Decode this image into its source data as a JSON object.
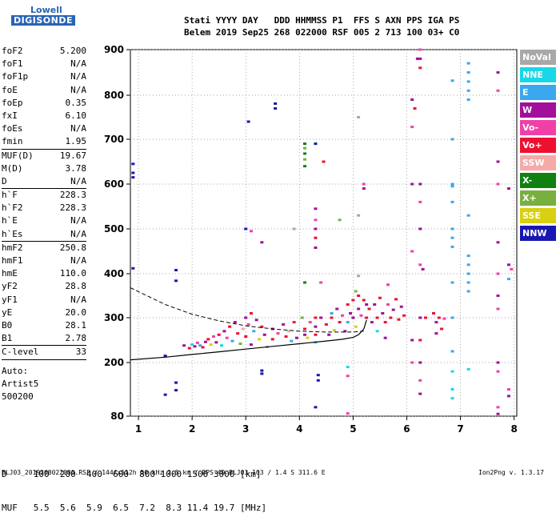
{
  "logo": {
    "brand": "Lowell",
    "product": "DIGISONDE"
  },
  "header": {
    "line1": "Stati YYYY DAY   DDD HHMMSS P1  FFS S AXN PPS IGA PS",
    "line2": "Belem 2019 Sep25 268 022000 RSF 005 2 713 100 03+ C0"
  },
  "params": {
    "group1": [
      {
        "label": "foF2",
        "value": "5.200"
      },
      {
        "label": "foF1",
        "value": "N/A"
      },
      {
        "label": "foF1p",
        "value": "N/A"
      },
      {
        "label": "foE",
        "value": "N/A"
      },
      {
        "label": "foEp",
        "value": "0.35"
      },
      {
        "label": "fxI",
        "value": "6.10"
      },
      {
        "label": "foEs",
        "value": "N/A"
      },
      {
        "label": "fmin",
        "value": "1.95"
      }
    ],
    "group2": [
      {
        "label": "MUF(D)",
        "value": "19.67"
      },
      {
        "label": "M(D)",
        "value": "3.78"
      },
      {
        "label": "D",
        "value": "N/A"
      }
    ],
    "group3": [
      {
        "label": "h`F",
        "value": "228.3"
      },
      {
        "label": "h`F2",
        "value": "228.3"
      },
      {
        "label": "h`E",
        "value": "N/A"
      },
      {
        "label": "h`Es",
        "value": "N/A"
      }
    ],
    "group4": [
      {
        "label": "hmF2",
        "value": "250.8"
      },
      {
        "label": "hmF1",
        "value": "N/A"
      },
      {
        "label": "hmE",
        "value": "110.0"
      },
      {
        "label": "yF2",
        "value": "28.8"
      },
      {
        "label": "yF1",
        "value": "N/A"
      },
      {
        "label": "yE",
        "value": "20.0"
      },
      {
        "label": "B0",
        "value": "28.1"
      },
      {
        "label": "B1",
        "value": "2.78"
      }
    ],
    "group5": [
      {
        "label": "C-level",
        "value": "33"
      }
    ],
    "auto": [
      "Auto:",
      "Artist5",
      "500200"
    ]
  },
  "legend": [
    {
      "label": "NoVal",
      "color": "#a8a8a8"
    },
    {
      "label": "NNE",
      "color": "#18d8e8"
    },
    {
      "label": "E",
      "color": "#3aa8ee"
    },
    {
      "label": "W",
      "color": "#a0109a"
    },
    {
      "label": "Vo-",
      "color": "#f040a8"
    },
    {
      "label": "Vo+",
      "color": "#ee1030"
    },
    {
      "label": "SSW",
      "color": "#f4aaa8"
    },
    {
      "label": "X-",
      "color": "#108010"
    },
    {
      "label": "X+",
      "color": "#78b040"
    },
    {
      "label": "SSE",
      "color": "#d8d010"
    },
    {
      "label": "NNW",
      "color": "#1818b0"
    }
  ],
  "dtable": {
    "line1": "D     100  200  400  600  800 1000 1500 3000 [km]",
    "line2": "MUF   5.5  5.6  5.9  6.5  7.2  8.3 11.4 19.7 [MHz]"
  },
  "footer": {
    "text": "BLJ03_2019268022000.RSF / 144fx512h 50 kHz 2.5 km / DPS-4D BLJ03 103 / 1.4 S 311.6 E",
    "version": "Ion2Png v. 1.3.17"
  },
  "chart_data": {
    "type": "scatter",
    "xlim": [
      0.85,
      8.05
    ],
    "ylim": [
      80,
      900
    ],
    "x_ticks": [
      1,
      2,
      3,
      4,
      5,
      6,
      7,
      8
    ],
    "y_ticks": [
      80,
      200,
      300,
      400,
      500,
      600,
      700,
      800,
      900
    ],
    "grid": true,
    "legend_position": "right",
    "solid_profile": {
      "x": [
        0.85,
        1.5,
        2.0,
        2.5,
        3.0,
        3.5,
        4.0,
        4.5,
        4.8,
        5.0,
        5.1,
        5.2,
        5.25
      ],
      "y": [
        206,
        212,
        218,
        224,
        230,
        236,
        242,
        248,
        252,
        256,
        262,
        275,
        295
      ]
    },
    "dashed_profile": {
      "x": [
        0.85,
        1.5,
        2.0,
        2.5,
        3.0,
        3.5,
        4.0,
        4.5,
        5.0,
        5.2
      ],
      "y": [
        368,
        330,
        308,
        293,
        282,
        275,
        270,
        268,
        268,
        270
      ]
    },
    "points": [
      {
        "x": 0.9,
        "y": 645,
        "c": "NNW"
      },
      {
        "x": 0.9,
        "y": 625,
        "c": "NNW"
      },
      {
        "x": 0.9,
        "y": 615,
        "c": "NNW"
      },
      {
        "x": 0.9,
        "y": 412,
        "c": "NNW"
      },
      {
        "x": 1.5,
        "y": 215,
        "c": "NNW"
      },
      {
        "x": 1.5,
        "y": 128,
        "c": "NNW"
      },
      {
        "x": 1.7,
        "y": 408,
        "c": "NNW"
      },
      {
        "x": 1.7,
        "y": 384,
        "c": "NNW"
      },
      {
        "x": 1.7,
        "y": 155,
        "c": "NNW"
      },
      {
        "x": 1.7,
        "y": 138,
        "c": "NNW"
      },
      {
        "x": 1.85,
        "y": 238,
        "c": "W"
      },
      {
        "x": 1.95,
        "y": 232,
        "c": "Vo+"
      },
      {
        "x": 2.0,
        "y": 240,
        "c": "NNE"
      },
      {
        "x": 2.05,
        "y": 236,
        "c": "W"
      },
      {
        "x": 2.1,
        "y": 244,
        "c": "Vo-"
      },
      {
        "x": 2.15,
        "y": 238,
        "c": "E"
      },
      {
        "x": 2.2,
        "y": 234,
        "c": "Vo+"
      },
      {
        "x": 2.25,
        "y": 246,
        "c": "W"
      },
      {
        "x": 2.3,
        "y": 252,
        "c": "Vo+"
      },
      {
        "x": 2.35,
        "y": 240,
        "c": "SSE"
      },
      {
        "x": 2.4,
        "y": 258,
        "c": "Vo-"
      },
      {
        "x": 2.45,
        "y": 245,
        "c": "W"
      },
      {
        "x": 2.5,
        "y": 262,
        "c": "Vo+"
      },
      {
        "x": 2.55,
        "y": 238,
        "c": "NNE"
      },
      {
        "x": 2.6,
        "y": 270,
        "c": "W"
      },
      {
        "x": 2.65,
        "y": 255,
        "c": "Vo-"
      },
      {
        "x": 2.7,
        "y": 280,
        "c": "Vo+"
      },
      {
        "x": 2.75,
        "y": 248,
        "c": "E"
      },
      {
        "x": 2.8,
        "y": 290,
        "c": "W"
      },
      {
        "x": 2.85,
        "y": 265,
        "c": "Vo+"
      },
      {
        "x": 2.9,
        "y": 242,
        "c": "X+"
      },
      {
        "x": 2.95,
        "y": 275,
        "c": "SSW"
      },
      {
        "x": 3.0,
        "y": 300,
        "c": "W"
      },
      {
        "x": 3.0,
        "y": 258,
        "c": "Vo+"
      },
      {
        "x": 3.05,
        "y": 285,
        "c": "Vo-"
      },
      {
        "x": 3.1,
        "y": 310,
        "c": "Vo+"
      },
      {
        "x": 3.1,
        "y": 240,
        "c": "W"
      },
      {
        "x": 3.15,
        "y": 270,
        "c": "E"
      },
      {
        "x": 3.2,
        "y": 295,
        "c": "W"
      },
      {
        "x": 3.25,
        "y": 252,
        "c": "SSE"
      },
      {
        "x": 3.3,
        "y": 280,
        "c": "Vo+"
      },
      {
        "x": 3.35,
        "y": 262,
        "c": "W"
      },
      {
        "x": 3.05,
        "y": 740,
        "c": "NNW"
      },
      {
        "x": 3.0,
        "y": 500,
        "c": "NNW"
      },
      {
        "x": 3.1,
        "y": 495,
        "c": "Vo-"
      },
      {
        "x": 3.3,
        "y": 470,
        "c": "W"
      },
      {
        "x": 3.3,
        "y": 182,
        "c": "NNW"
      },
      {
        "x": 3.3,
        "y": 175,
        "c": "NNW"
      },
      {
        "x": 3.4,
        "y": 235,
        "c": "NoVal"
      },
      {
        "x": 3.5,
        "y": 275,
        "c": "W"
      },
      {
        "x": 3.5,
        "y": 252,
        "c": "Vo+"
      },
      {
        "x": 3.55,
        "y": 781,
        "c": "NNW"
      },
      {
        "x": 3.55,
        "y": 770,
        "c": "NNW"
      },
      {
        "x": 3.6,
        "y": 265,
        "c": "Vo-"
      },
      {
        "x": 3.7,
        "y": 285,
        "c": "W"
      },
      {
        "x": 3.75,
        "y": 258,
        "c": "Vo+"
      },
      {
        "x": 3.8,
        "y": 270,
        "c": "SSW"
      },
      {
        "x": 3.85,
        "y": 248,
        "c": "E"
      },
      {
        "x": 3.9,
        "y": 290,
        "c": "Vo+"
      },
      {
        "x": 3.95,
        "y": 255,
        "c": "W"
      },
      {
        "x": 3.9,
        "y": 500,
        "c": "NoVal"
      },
      {
        "x": 4.1,
        "y": 690,
        "c": "X-"
      },
      {
        "x": 4.1,
        "y": 680,
        "c": "X+"
      },
      {
        "x": 4.1,
        "y": 668,
        "c": "X-"
      },
      {
        "x": 4.1,
        "y": 655,
        "c": "X+"
      },
      {
        "x": 4.1,
        "y": 640,
        "c": "X-"
      },
      {
        "x": 4.1,
        "y": 380,
        "c": "X-"
      },
      {
        "x": 4.05,
        "y": 300,
        "c": "X+"
      },
      {
        "x": 4.1,
        "y": 275,
        "c": "Vo+"
      },
      {
        "x": 4.1,
        "y": 262,
        "c": "W"
      },
      {
        "x": 4.15,
        "y": 255,
        "c": "SSE"
      },
      {
        "x": 4.2,
        "y": 290,
        "c": "Vo-"
      },
      {
        "x": 4.3,
        "y": 690,
        "c": "NNW"
      },
      {
        "x": 4.3,
        "y": 545,
        "c": "W"
      },
      {
        "x": 4.3,
        "y": 520,
        "c": "Vo-"
      },
      {
        "x": 4.3,
        "y": 500,
        "c": "W"
      },
      {
        "x": 4.3,
        "y": 480,
        "c": "Vo+"
      },
      {
        "x": 4.3,
        "y": 458,
        "c": "W"
      },
      {
        "x": 4.3,
        "y": 300,
        "c": "Vo+"
      },
      {
        "x": 4.3,
        "y": 280,
        "c": "W"
      },
      {
        "x": 4.3,
        "y": 262,
        "c": "Vo+"
      },
      {
        "x": 4.3,
        "y": 245,
        "c": "NNE"
      },
      {
        "x": 4.35,
        "y": 172,
        "c": "NNW"
      },
      {
        "x": 4.35,
        "y": 160,
        "c": "NNW"
      },
      {
        "x": 4.4,
        "y": 380,
        "c": "Vo-"
      },
      {
        "x": 4.4,
        "y": 300,
        "c": "W"
      },
      {
        "x": 4.45,
        "y": 650,
        "c": "Vo+"
      },
      {
        "x": 4.5,
        "y": 285,
        "c": "Vo+"
      },
      {
        "x": 4.55,
        "y": 262,
        "c": "W"
      },
      {
        "x": 4.6,
        "y": 310,
        "c": "E"
      },
      {
        "x": 4.6,
        "y": 300,
        "c": "Vo+"
      },
      {
        "x": 4.65,
        "y": 272,
        "c": "SSE"
      },
      {
        "x": 4.7,
        "y": 320,
        "c": "W"
      },
      {
        "x": 4.75,
        "y": 290,
        "c": "Vo+"
      },
      {
        "x": 4.75,
        "y": 520,
        "c": "X+"
      },
      {
        "x": 4.8,
        "y": 305,
        "c": "Vo-"
      },
      {
        "x": 4.85,
        "y": 270,
        "c": "W"
      },
      {
        "x": 4.9,
        "y": 330,
        "c": "Vo+"
      },
      {
        "x": 4.9,
        "y": 290,
        "c": "E"
      },
      {
        "x": 4.9,
        "y": 190,
        "c": "NNE"
      },
      {
        "x": 4.95,
        "y": 310,
        "c": "W"
      },
      {
        "x": 4.9,
        "y": 170,
        "c": "Vo-"
      },
      {
        "x": 5.0,
        "y": 340,
        "c": "Vo+"
      },
      {
        "x": 5.0,
        "y": 300,
        "c": "W"
      },
      {
        "x": 5.05,
        "y": 280,
        "c": "SSE"
      },
      {
        "x": 5.05,
        "y": 360,
        "c": "X+"
      },
      {
        "x": 5.1,
        "y": 350,
        "c": "Vo+"
      },
      {
        "x": 5.1,
        "y": 320,
        "c": "W"
      },
      {
        "x": 5.1,
        "y": 395,
        "c": "NoVal"
      },
      {
        "x": 5.1,
        "y": 530,
        "c": "NoVal"
      },
      {
        "x": 5.1,
        "y": 750,
        "c": "NoVal"
      },
      {
        "x": 5.15,
        "y": 305,
        "c": "Vo-"
      },
      {
        "x": 5.2,
        "y": 340,
        "c": "Vo+"
      },
      {
        "x": 5.2,
        "y": 600,
        "c": "Vo-"
      },
      {
        "x": 5.2,
        "y": 590,
        "c": "W"
      },
      {
        "x": 5.25,
        "y": 330,
        "c": "W"
      },
      {
        "x": 5.25,
        "y": 300,
        "c": "Vo+"
      },
      {
        "x": 5.3,
        "y": 320,
        "c": "Vo+"
      },
      {
        "x": 5.35,
        "y": 290,
        "c": "W"
      },
      {
        "x": 4.3,
        "y": 100,
        "c": "NNW"
      },
      {
        "x": 4.9,
        "y": 86,
        "c": "Vo-"
      },
      {
        "x": 5.4,
        "y": 330,
        "c": "W"
      },
      {
        "x": 5.45,
        "y": 300,
        "c": "Vo+"
      },
      {
        "x": 5.5,
        "y": 345,
        "c": "Vo+"
      },
      {
        "x": 5.55,
        "y": 310,
        "c": "W"
      },
      {
        "x": 5.6,
        "y": 290,
        "c": "Vo+"
      },
      {
        "x": 5.65,
        "y": 330,
        "c": "Vo-"
      },
      {
        "x": 5.7,
        "y": 300,
        "c": "Vo+"
      },
      {
        "x": 5.75,
        "y": 318,
        "c": "W"
      },
      {
        "x": 5.8,
        "y": 342,
        "c": "Vo+"
      },
      {
        "x": 5.85,
        "y": 296,
        "c": "Vo+"
      },
      {
        "x": 5.9,
        "y": 325,
        "c": "W"
      },
      {
        "x": 5.95,
        "y": 305,
        "c": "Vo+"
      },
      {
        "x": 5.6,
        "y": 255,
        "c": "W"
      },
      {
        "x": 5.65,
        "y": 375,
        "c": "Vo-"
      },
      {
        "x": 5.45,
        "y": 270,
        "c": "NNE"
      },
      {
        "x": 6.1,
        "y": 790,
        "c": "W"
      },
      {
        "x": 6.1,
        "y": 728,
        "c": "Vo-"
      },
      {
        "x": 6.1,
        "y": 600,
        "c": "W"
      },
      {
        "x": 6.1,
        "y": 450,
        "c": "Vo-"
      },
      {
        "x": 6.1,
        "y": 250,
        "c": "W"
      },
      {
        "x": 6.1,
        "y": 200,
        "c": "Vo-"
      },
      {
        "x": 6.15,
        "y": 770,
        "c": "Vo+"
      },
      {
        "x": 6.2,
        "y": 880,
        "c": "W"
      },
      {
        "x": 6.25,
        "y": 900,
        "c": "Vo-"
      },
      {
        "x": 6.25,
        "y": 880,
        "c": "W"
      },
      {
        "x": 6.25,
        "y": 860,
        "c": "Vo+"
      },
      {
        "x": 6.25,
        "y": 600,
        "c": "W"
      },
      {
        "x": 6.25,
        "y": 560,
        "c": "Vo-"
      },
      {
        "x": 6.25,
        "y": 500,
        "c": "W"
      },
      {
        "x": 6.25,
        "y": 420,
        "c": "Vo-"
      },
      {
        "x": 6.25,
        "y": 300,
        "c": "W"
      },
      {
        "x": 6.25,
        "y": 250,
        "c": "Vo+"
      },
      {
        "x": 6.25,
        "y": 200,
        "c": "W"
      },
      {
        "x": 6.25,
        "y": 160,
        "c": "Vo-"
      },
      {
        "x": 6.25,
        "y": 130,
        "c": "W"
      },
      {
        "x": 6.3,
        "y": 410,
        "c": "W"
      },
      {
        "x": 6.35,
        "y": 300,
        "c": "Vo+"
      },
      {
        "x": 6.5,
        "y": 310,
        "c": "Vo+"
      },
      {
        "x": 6.55,
        "y": 290,
        "c": "W"
      },
      {
        "x": 6.6,
        "y": 300,
        "c": "Vo+"
      },
      {
        "x": 6.65,
        "y": 275,
        "c": "Vo+"
      },
      {
        "x": 6.55,
        "y": 265,
        "c": "W"
      },
      {
        "x": 6.7,
        "y": 298,
        "c": "Vo-"
      },
      {
        "x": 6.85,
        "y": 832,
        "c": "E"
      },
      {
        "x": 6.85,
        "y": 700,
        "c": "E"
      },
      {
        "x": 6.85,
        "y": 600,
        "c": "E"
      },
      {
        "x": 6.85,
        "y": 595,
        "c": "E"
      },
      {
        "x": 6.85,
        "y": 560,
        "c": "E"
      },
      {
        "x": 6.85,
        "y": 500,
        "c": "E"
      },
      {
        "x": 6.85,
        "y": 480,
        "c": "E"
      },
      {
        "x": 6.85,
        "y": 460,
        "c": "E"
      },
      {
        "x": 6.85,
        "y": 380,
        "c": "E"
      },
      {
        "x": 6.85,
        "y": 300,
        "c": "E"
      },
      {
        "x": 6.85,
        "y": 225,
        "c": "E"
      },
      {
        "x": 6.85,
        "y": 180,
        "c": "NNE"
      },
      {
        "x": 6.85,
        "y": 140,
        "c": "NNE"
      },
      {
        "x": 6.85,
        "y": 120,
        "c": "NNE"
      },
      {
        "x": 7.15,
        "y": 870,
        "c": "E"
      },
      {
        "x": 7.15,
        "y": 850,
        "c": "E"
      },
      {
        "x": 7.15,
        "y": 830,
        "c": "E"
      },
      {
        "x": 7.15,
        "y": 810,
        "c": "E"
      },
      {
        "x": 7.15,
        "y": 790,
        "c": "E"
      },
      {
        "x": 7.15,
        "y": 530,
        "c": "E"
      },
      {
        "x": 7.15,
        "y": 440,
        "c": "E"
      },
      {
        "x": 7.15,
        "y": 420,
        "c": "E"
      },
      {
        "x": 7.15,
        "y": 400,
        "c": "E"
      },
      {
        "x": 7.15,
        "y": 380,
        "c": "E"
      },
      {
        "x": 7.15,
        "y": 360,
        "c": "E"
      },
      {
        "x": 7.15,
        "y": 185,
        "c": "NNE"
      },
      {
        "x": 7.7,
        "y": 850,
        "c": "W"
      },
      {
        "x": 7.7,
        "y": 810,
        "c": "Vo-"
      },
      {
        "x": 7.7,
        "y": 650,
        "c": "W"
      },
      {
        "x": 7.7,
        "y": 600,
        "c": "Vo-"
      },
      {
        "x": 7.7,
        "y": 470,
        "c": "W"
      },
      {
        "x": 7.7,
        "y": 400,
        "c": "Vo-"
      },
      {
        "x": 7.7,
        "y": 350,
        "c": "W"
      },
      {
        "x": 7.7,
        "y": 320,
        "c": "Vo-"
      },
      {
        "x": 7.7,
        "y": 200,
        "c": "W"
      },
      {
        "x": 7.7,
        "y": 180,
        "c": "Vo-"
      },
      {
        "x": 7.7,
        "y": 100,
        "c": "Vo-"
      },
      {
        "x": 7.7,
        "y": 85,
        "c": "W"
      },
      {
        "x": 7.9,
        "y": 590,
        "c": "W"
      },
      {
        "x": 7.9,
        "y": 420,
        "c": "W"
      },
      {
        "x": 7.9,
        "y": 388,
        "c": "E"
      },
      {
        "x": 7.9,
        "y": 140,
        "c": "Vo-"
      },
      {
        "x": 7.9,
        "y": 125,
        "c": "W"
      },
      {
        "x": 7.95,
        "y": 410,
        "c": "Vo-"
      }
    ]
  }
}
